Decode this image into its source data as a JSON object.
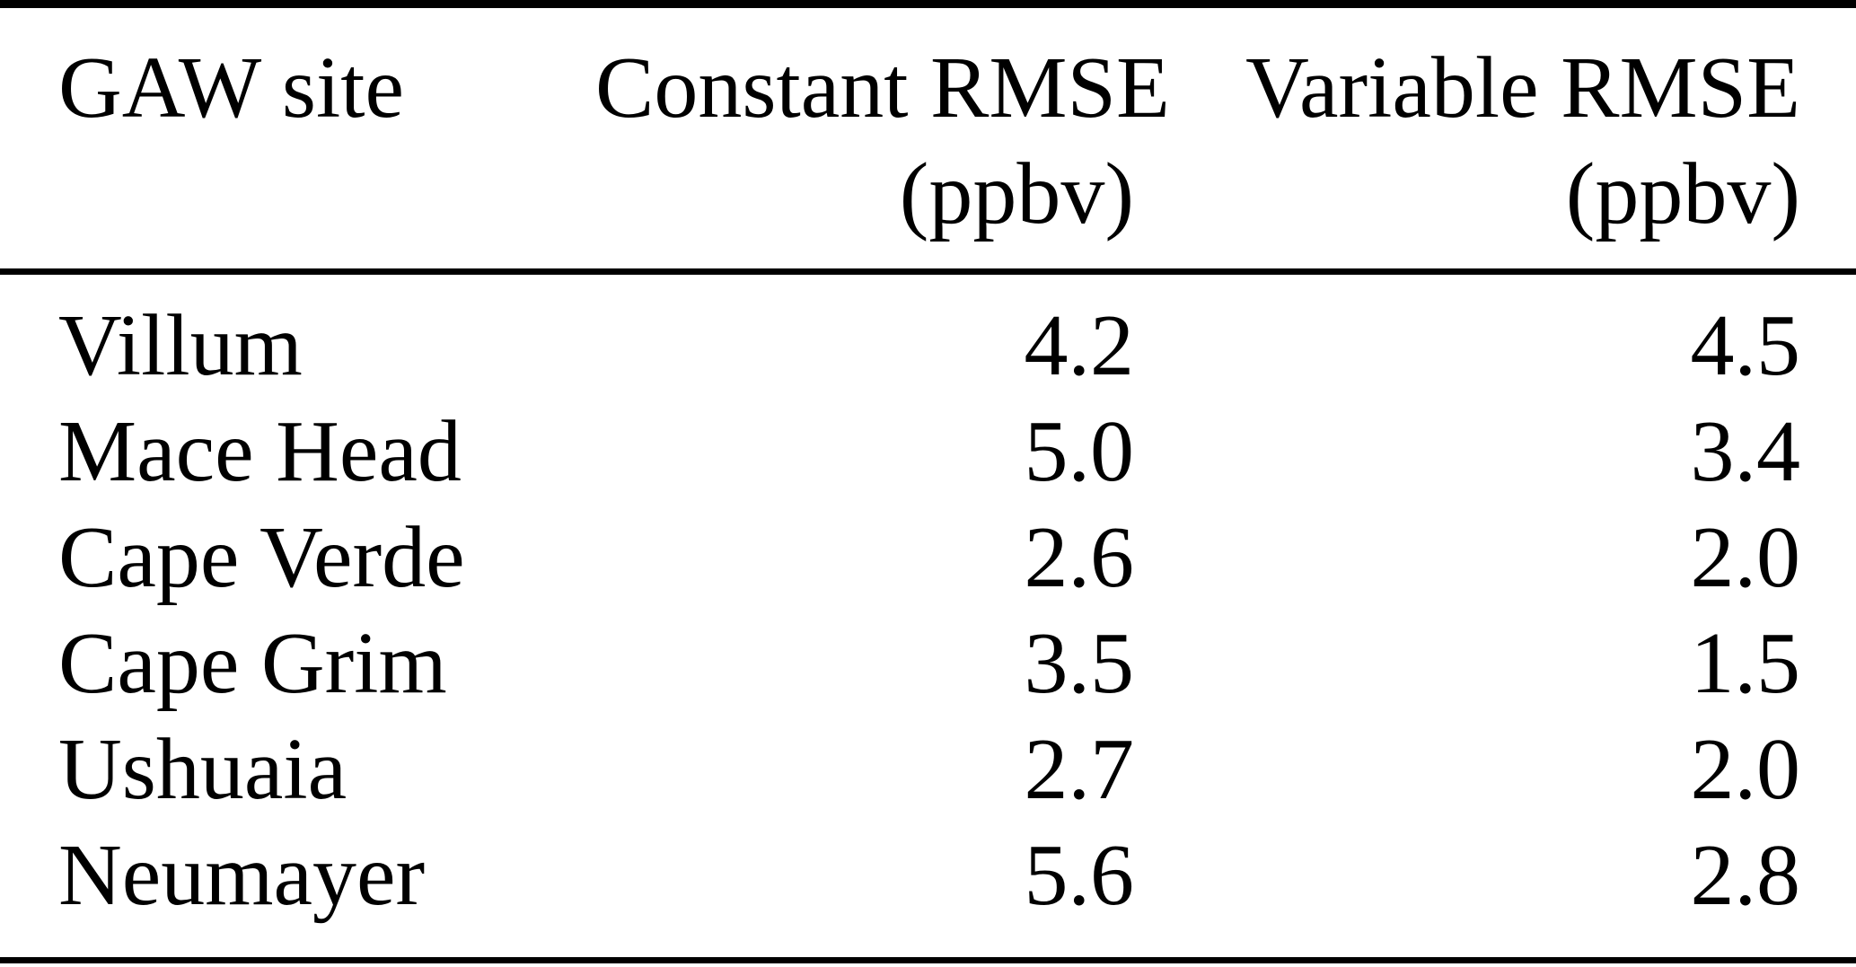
{
  "table": {
    "columns": [
      {
        "label": "GAW site",
        "unit": ""
      },
      {
        "label": "Constant RMSE",
        "unit": "(ppbv)"
      },
      {
        "label": "Variable RMSE",
        "unit": "(ppbv)"
      }
    ],
    "rows": [
      {
        "site": "Villum",
        "constant": "4.2",
        "variable": "4.5"
      },
      {
        "site": "Mace Head",
        "constant": "5.0",
        "variable": "3.4"
      },
      {
        "site": "Cape Verde",
        "constant": "2.6",
        "variable": "2.0"
      },
      {
        "site": "Cape Grim",
        "constant": "3.5",
        "variable": "1.5"
      },
      {
        "site": "Ushuaia",
        "constant": "2.7",
        "variable": "2.0"
      },
      {
        "site": "Neumayer",
        "constant": "5.6",
        "variable": "2.8"
      }
    ],
    "colors": {
      "text": "#000000",
      "background": "#ffffff",
      "rule": "#000000"
    }
  }
}
